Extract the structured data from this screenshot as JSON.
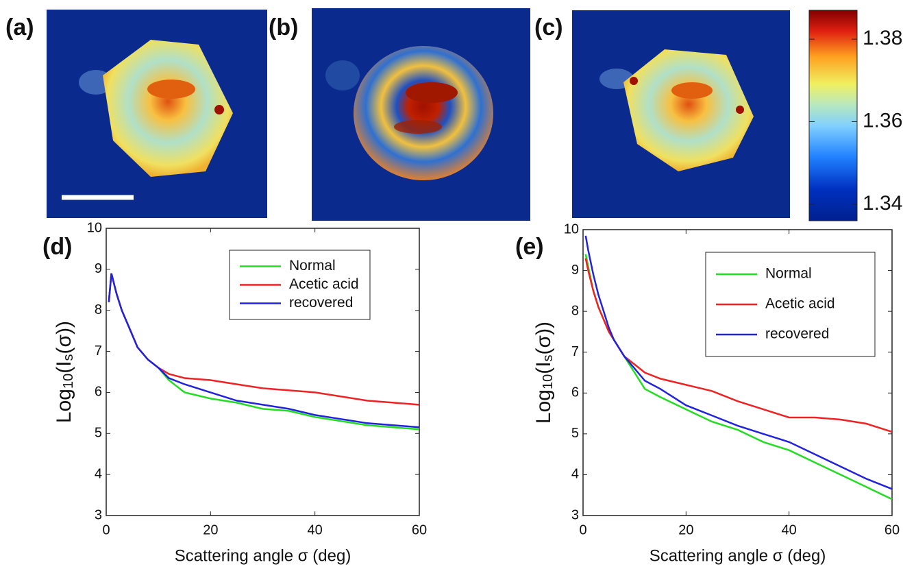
{
  "chart_data": [
    {
      "type": "colorbar",
      "panel_labels": [
        "(a)",
        "(b)",
        "(c)"
      ],
      "ylim": [
        1.336,
        1.387
      ],
      "yticks": [
        1.34,
        1.36,
        1.38
      ]
    },
    {
      "type": "line",
      "panel_label": "(d)",
      "xlabel": "Scattering angle σ (deg)",
      "ylabel": [
        "Log",
        "10",
        "(I",
        "s",
        "(σ))"
      ],
      "x": [
        0.5,
        1,
        2,
        3,
        4,
        5,
        6,
        8,
        10,
        12,
        15,
        20,
        25,
        30,
        35,
        40,
        45,
        50,
        55,
        60
      ],
      "series": [
        {
          "name": "Normal",
          "color": "#22dd22",
          "values": [
            8.2,
            8.9,
            8.4,
            8.0,
            7.7,
            7.4,
            7.1,
            6.8,
            6.6,
            6.3,
            6.0,
            5.85,
            5.75,
            5.6,
            5.55,
            5.4,
            5.3,
            5.2,
            5.15,
            5.1
          ]
        },
        {
          "name": "Acetic acid",
          "color": "#ee2222",
          "values": [
            8.2,
            8.9,
            8.4,
            8.0,
            7.7,
            7.4,
            7.1,
            6.8,
            6.6,
            6.45,
            6.35,
            6.3,
            6.2,
            6.1,
            6.05,
            6.0,
            5.9,
            5.8,
            5.75,
            5.7
          ]
        },
        {
          "name": "recovered",
          "color": "#2222dd",
          "values": [
            8.2,
            8.9,
            8.4,
            8.0,
            7.7,
            7.4,
            7.1,
            6.8,
            6.6,
            6.35,
            6.2,
            6.0,
            5.8,
            5.7,
            5.6,
            5.45,
            5.35,
            5.25,
            5.2,
            5.15
          ]
        }
      ],
      "xlim": [
        0,
        60
      ],
      "xticks": [
        0,
        20,
        40,
        60
      ],
      "ylim": [
        3,
        10
      ],
      "yticks": [
        3,
        4,
        5,
        6,
        7,
        8,
        9,
        10
      ],
      "legend": "upper right"
    },
    {
      "type": "line",
      "panel_label": "(e)",
      "xlabel": "Scattering angle σ (deg)",
      "ylabel": [
        "Log",
        "10",
        "(I",
        "s",
        "(σ))"
      ],
      "x": [
        0.5,
        1,
        2,
        3,
        4,
        5,
        6,
        8,
        10,
        12,
        15,
        20,
        25,
        30,
        35,
        40,
        45,
        50,
        55,
        60
      ],
      "series": [
        {
          "name": "Normal",
          "color": "#22dd22",
          "values": [
            9.4,
            9.1,
            8.5,
            8.1,
            7.8,
            7.5,
            7.3,
            6.9,
            6.5,
            6.1,
            5.9,
            5.6,
            5.3,
            5.1,
            4.8,
            4.6,
            4.3,
            4.0,
            3.7,
            3.4
          ]
        },
        {
          "name": "Acetic acid",
          "color": "#ee2222",
          "values": [
            9.3,
            9.0,
            8.5,
            8.1,
            7.8,
            7.5,
            7.3,
            6.9,
            6.7,
            6.5,
            6.35,
            6.2,
            6.05,
            5.8,
            5.6,
            5.4,
            5.4,
            5.35,
            5.25,
            5.05
          ]
        },
        {
          "name": "recovered",
          "color": "#2222dd",
          "values": [
            9.85,
            9.5,
            8.9,
            8.4,
            8.0,
            7.6,
            7.3,
            6.9,
            6.6,
            6.3,
            6.1,
            5.7,
            5.45,
            5.2,
            5.0,
            4.8,
            4.5,
            4.2,
            3.9,
            3.65
          ]
        }
      ],
      "xlim": [
        0,
        60
      ],
      "xticks": [
        0,
        20,
        40,
        60
      ],
      "ylim": [
        3,
        10
      ],
      "yticks": [
        3,
        4,
        5,
        6,
        7,
        8,
        9,
        10
      ],
      "legend": "upper right"
    }
  ]
}
